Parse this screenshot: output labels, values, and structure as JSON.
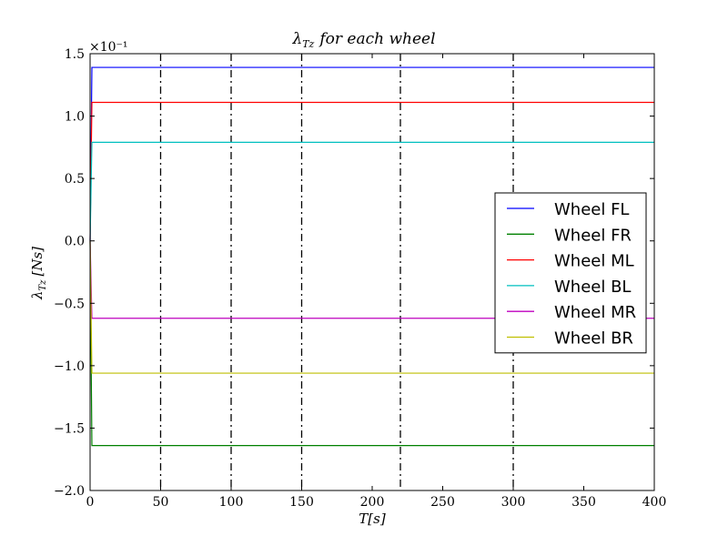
{
  "chart_data": {
    "type": "line",
    "title": "λ_Tz for each wheel",
    "title_parts": {
      "lambda": "λ",
      "sub": "Tz",
      "rest": "for each wheel"
    },
    "xlabel": "T[s]",
    "ylabel": "λ_Tz [Ns]",
    "ylabel_parts": {
      "lambda": "λ",
      "sub": "Tz",
      "rest": "[Ns]"
    },
    "y_offset_text": "×10⁻¹",
    "xlim": [
      0,
      400
    ],
    "ylim": [
      -2.0,
      1.5
    ],
    "x_ticks": [
      0,
      50,
      100,
      150,
      200,
      250,
      300,
      350,
      400
    ],
    "x_tick_labels": [
      "0",
      "50",
      "100",
      "150",
      "200",
      "250",
      "300",
      "350",
      "400"
    ],
    "y_ticks": [
      -2.0,
      -1.5,
      -1.0,
      -0.5,
      0.0,
      0.5,
      1.0,
      1.5
    ],
    "y_tick_labels": [
      "−2.0",
      "−1.5",
      "−1.0",
      "−0.5",
      "0.0",
      "0.5",
      "1.0",
      "1.5"
    ],
    "vertical_dashdot_lines_x": [
      50,
      100,
      150,
      220,
      300
    ],
    "grid": false,
    "legend_position": "center-right",
    "series": [
      {
        "name": "Wheel FL",
        "color": "#0000ff",
        "y": 1.39
      },
      {
        "name": "Wheel FR",
        "color": "#008000",
        "y": -1.64
      },
      {
        "name": "Wheel ML",
        "color": "#ff0000",
        "y": 1.11
      },
      {
        "name": "Wheel BL",
        "color": "#00bfbf",
        "y": 0.79
      },
      {
        "name": "Wheel MR",
        "color": "#bf00bf",
        "y": -0.62
      },
      {
        "name": "Wheel BR",
        "color": "#bfbf00",
        "y": -1.06
      }
    ]
  }
}
